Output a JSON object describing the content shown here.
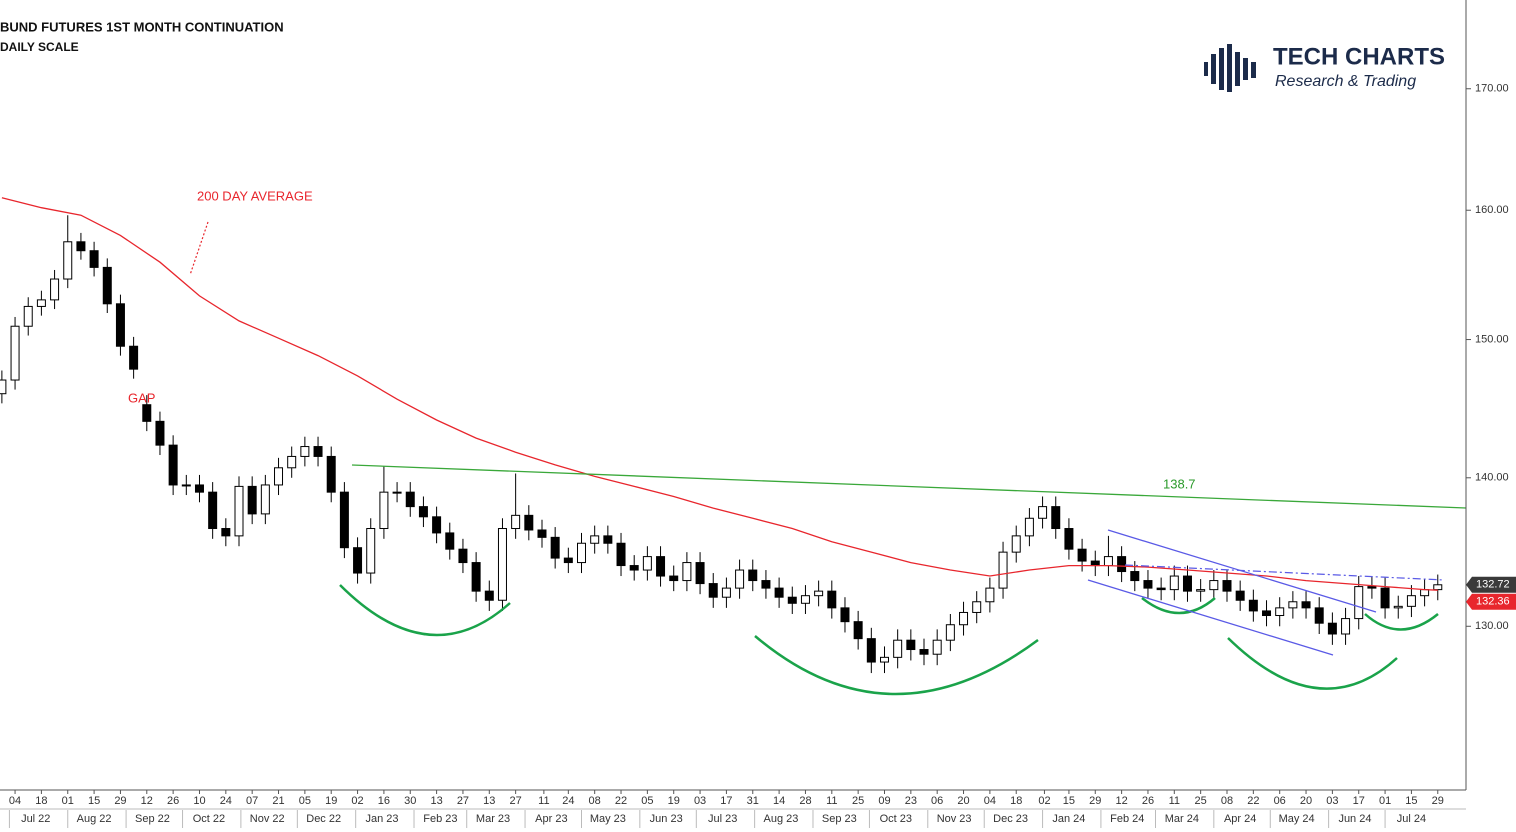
{
  "chart_data": {
    "type": "candlestick",
    "title": "BUND FUTURES 1ST MONTH CONTINUATION",
    "subtitle": "DAILY SCALE",
    "log_scale": true,
    "color_up": "#ffffff",
    "color_down": "#000000",
    "ylim": [
      119.8,
      177.7
    ],
    "yticks": [
      {
        "value": 130,
        "label": "130.00"
      },
      {
        "value": 140,
        "label": "140.00"
      },
      {
        "value": 150,
        "label": "150.00"
      },
      {
        "value": 160,
        "label": "160.00"
      },
      {
        "value": 170,
        "label": "170.00"
      }
    ],
    "xlim": [
      "2022-06-26",
      "2024-08-13"
    ],
    "xticks": [
      {
        "value": "2022-07-04",
        "label": "04"
      },
      {
        "value": "2022-07-18",
        "label": "18"
      },
      {
        "value": "2022-08-01",
        "label": "01"
      },
      {
        "value": "2022-08-15",
        "label": "15"
      },
      {
        "value": "2022-08-29",
        "label": "29"
      },
      {
        "value": "2022-09-12",
        "label": "12"
      },
      {
        "value": "2022-09-26",
        "label": "26"
      },
      {
        "value": "2022-10-10",
        "label": "10"
      },
      {
        "value": "2022-10-24",
        "label": "24"
      },
      {
        "value": "2022-11-07",
        "label": "07"
      },
      {
        "value": "2022-11-21",
        "label": "21"
      },
      {
        "value": "2022-12-05",
        "label": "05"
      },
      {
        "value": "2022-12-19",
        "label": "19"
      },
      {
        "value": "2023-01-02",
        "label": "02"
      },
      {
        "value": "2023-01-16",
        "label": "16"
      },
      {
        "value": "2023-01-30",
        "label": "30"
      },
      {
        "value": "2023-02-13",
        "label": "13"
      },
      {
        "value": "2023-02-27",
        "label": "27"
      },
      {
        "value": "2023-03-13",
        "label": "13"
      },
      {
        "value": "2023-03-27",
        "label": "27"
      },
      {
        "value": "2023-04-11",
        "label": "11"
      },
      {
        "value": "2023-04-24",
        "label": "24"
      },
      {
        "value": "2023-05-08",
        "label": "08"
      },
      {
        "value": "2023-05-22",
        "label": "22"
      },
      {
        "value": "2023-06-05",
        "label": "05"
      },
      {
        "value": "2023-06-19",
        "label": "19"
      },
      {
        "value": "2023-07-03",
        "label": "03"
      },
      {
        "value": "2023-07-17",
        "label": "17"
      },
      {
        "value": "2023-07-31",
        "label": "31"
      },
      {
        "value": "2023-08-14",
        "label": "14"
      },
      {
        "value": "2023-08-28",
        "label": "28"
      },
      {
        "value": "2023-09-11",
        "label": "11"
      },
      {
        "value": "2023-09-25",
        "label": "25"
      },
      {
        "value": "2023-10-09",
        "label": "09"
      },
      {
        "value": "2023-10-23",
        "label": "23"
      },
      {
        "value": "2023-11-06",
        "label": "06"
      },
      {
        "value": "2023-11-20",
        "label": "20"
      },
      {
        "value": "2023-12-04",
        "label": "04"
      },
      {
        "value": "2023-12-18",
        "label": "18"
      },
      {
        "value": "2024-01-02",
        "label": "02"
      },
      {
        "value": "2024-01-15",
        "label": "15"
      },
      {
        "value": "2024-01-29",
        "label": "29"
      },
      {
        "value": "2024-02-12",
        "label": "12"
      },
      {
        "value": "2024-02-26",
        "label": "26"
      },
      {
        "value": "2024-03-11",
        "label": "11"
      },
      {
        "value": "2024-03-25",
        "label": "25"
      },
      {
        "value": "2024-04-08",
        "label": "08"
      },
      {
        "value": "2024-04-22",
        "label": "22"
      },
      {
        "value": "2024-05-06",
        "label": "06"
      },
      {
        "value": "2024-05-20",
        "label": "20"
      },
      {
        "value": "2024-06-03",
        "label": "03"
      },
      {
        "value": "2024-06-17",
        "label": "17"
      },
      {
        "value": "2024-07-01",
        "label": "01"
      },
      {
        "value": "2024-07-15",
        "label": "15"
      },
      {
        "value": "2024-07-29",
        "label": "29"
      }
    ],
    "month_labels": [
      {
        "value": "2022-07",
        "label": "Jul 22"
      },
      {
        "value": "2022-08",
        "label": "Aug 22"
      },
      {
        "value": "2022-09",
        "label": "Sep 22"
      },
      {
        "value": "2022-10",
        "label": "Oct 22"
      },
      {
        "value": "2022-11",
        "label": "Nov 22"
      },
      {
        "value": "2022-12",
        "label": "Dec 22"
      },
      {
        "value": "2023-01",
        "label": "Jan 23"
      },
      {
        "value": "2023-02",
        "label": "Feb 23"
      },
      {
        "value": "2023-03",
        "label": "Mar 23"
      },
      {
        "value": "2023-04",
        "label": "Apr 23"
      },
      {
        "value": "2023-05",
        "label": "May 23"
      },
      {
        "value": "2023-06",
        "label": "Jun 23"
      },
      {
        "value": "2023-07",
        "label": "Jul 23"
      },
      {
        "value": "2023-08",
        "label": "Aug 23"
      },
      {
        "value": "2023-09",
        "label": "Sep 23"
      },
      {
        "value": "2023-10",
        "label": "Oct 23"
      },
      {
        "value": "2023-11",
        "label": "Nov 23"
      },
      {
        "value": "2023-12",
        "label": "Dec 23"
      },
      {
        "value": "2024-01",
        "label": "Jan 24"
      },
      {
        "value": "2024-02",
        "label": "Feb 24"
      },
      {
        "value": "2024-03",
        "label": "Mar 24"
      },
      {
        "value": "2024-04",
        "label": "Apr 24"
      },
      {
        "value": "2024-05",
        "label": "May 24"
      },
      {
        "value": "2024-06",
        "label": "Jun 24"
      },
      {
        "value": "2024-07",
        "label": "Jul 24"
      }
    ],
    "dates": [
      "2022-06-27",
      "2022-07-04",
      "2022-07-11",
      "2022-07-18",
      "2022-07-25",
      "2022-08-01",
      "2022-08-08",
      "2022-08-15",
      "2022-08-22",
      "2022-08-29",
      "2022-09-05",
      "2022-09-12",
      "2022-09-19",
      "2022-09-26",
      "2022-10-03",
      "2022-10-10",
      "2022-10-17",
      "2022-10-24",
      "2022-10-31",
      "2022-11-07",
      "2022-11-14",
      "2022-11-21",
      "2022-11-28",
      "2022-12-05",
      "2022-12-12",
      "2022-12-19",
      "2022-12-26",
      "2023-01-02",
      "2023-01-09",
      "2023-01-16",
      "2023-01-23",
      "2023-01-30",
      "2023-02-06",
      "2023-02-13",
      "2023-02-20",
      "2023-02-27",
      "2023-03-06",
      "2023-03-13",
      "2023-03-20",
      "2023-03-27",
      "2023-04-03",
      "2023-04-10",
      "2023-04-17",
      "2023-04-24",
      "2023-05-01",
      "2023-05-08",
      "2023-05-15",
      "2023-05-22",
      "2023-05-29",
      "2023-06-05",
      "2023-06-12",
      "2023-06-19",
      "2023-06-26",
      "2023-07-03",
      "2023-07-10",
      "2023-07-17",
      "2023-07-24",
      "2023-07-31",
      "2023-08-07",
      "2023-08-14",
      "2023-08-21",
      "2023-08-28",
      "2023-09-04",
      "2023-09-11",
      "2023-09-18",
      "2023-09-25",
      "2023-10-02",
      "2023-10-09",
      "2023-10-16",
      "2023-10-23",
      "2023-10-30",
      "2023-11-06",
      "2023-11-13",
      "2023-11-20",
      "2023-11-27",
      "2023-12-04",
      "2023-12-11",
      "2023-12-18",
      "2023-12-25",
      "2024-01-01",
      "2024-01-08",
      "2024-01-15",
      "2024-01-22",
      "2024-01-29",
      "2024-02-05",
      "2024-02-12",
      "2024-02-19",
      "2024-02-26",
      "2024-03-04",
      "2024-03-11",
      "2024-03-18",
      "2024-03-25",
      "2024-04-01",
      "2024-04-08",
      "2024-04-15",
      "2024-04-22",
      "2024-04-29",
      "2024-05-06",
      "2024-05-13",
      "2024-05-20",
      "2024-05-27",
      "2024-06-03",
      "2024-06-10",
      "2024-06-17",
      "2024-06-24",
      "2024-07-01",
      "2024-07-08",
      "2024-07-15",
      "2024-07-22",
      "2024-07-29"
    ],
    "open": [
      146.0,
      147.0,
      151.0,
      152.5,
      153.0,
      154.6,
      157.5,
      156.8,
      155.5,
      152.7,
      149.5,
      145.2,
      144.0,
      142.3,
      139.5,
      139.5,
      139.0,
      136.5,
      136.0,
      139.4,
      137.5,
      139.5,
      140.7,
      141.5,
      142.2,
      141.5,
      139.0,
      135.2,
      133.5,
      136.5,
      139.0,
      139.0,
      138.0,
      137.3,
      136.2,
      135.1,
      134.2,
      132.3,
      131.7,
      136.5,
      137.4,
      136.4,
      135.9,
      134.5,
      134.2,
      135.5,
      136.0,
      135.5,
      134.0,
      133.7,
      134.6,
      133.3,
      133.0,
      134.2,
      132.8,
      131.9,
      132.5,
      133.7,
      133.0,
      132.5,
      131.9,
      131.5,
      132.0,
      132.3,
      131.2,
      130.3,
      129.2,
      127.7,
      128.0,
      129.1,
      128.5,
      128.2,
      129.1,
      130.1,
      130.9,
      131.6,
      132.5,
      134.9,
      136.0,
      137.2,
      138.0,
      136.5,
      135.1,
      134.3,
      134.0,
      134.6,
      133.6,
      133.0,
      132.5,
      132.4,
      133.3,
      132.3,
      132.4,
      133.0,
      132.3,
      131.7,
      131.0,
      130.7,
      131.2,
      131.6,
      131.2,
      130.2,
      129.5,
      130.5,
      132.6,
      132.5,
      131.2,
      131.3,
      132.0,
      132.4
    ],
    "high": [
      147.7,
      151.7,
      153.2,
      153.7,
      155.3,
      159.6,
      158.2,
      157.5,
      156.2,
      153.4,
      150.2,
      145.9,
      144.7,
      143.0,
      140.2,
      140.2,
      139.7,
      137.2,
      140.1,
      140.1,
      140.2,
      141.4,
      142.2,
      142.9,
      142.9,
      142.2,
      139.7,
      135.9,
      137.2,
      140.8,
      139.7,
      139.7,
      138.7,
      138.0,
      136.9,
      135.8,
      134.9,
      133.0,
      137.2,
      140.3,
      138.1,
      137.1,
      136.6,
      135.2,
      136.2,
      136.7,
      136.7,
      136.2,
      134.7,
      135.3,
      135.3,
      134.0,
      134.9,
      134.9,
      133.5,
      133.2,
      134.4,
      134.4,
      133.7,
      133.2,
      132.6,
      132.7,
      133.0,
      133.0,
      131.9,
      131.0,
      129.9,
      128.7,
      129.8,
      129.8,
      129.2,
      129.8,
      130.8,
      131.6,
      132.3,
      133.2,
      135.6,
      136.7,
      137.9,
      138.7,
      138.7,
      137.2,
      135.8,
      135.0,
      136.0,
      135.3,
      134.3,
      133.7,
      133.2,
      134.0,
      134.0,
      133.1,
      133.7,
      133.7,
      133.0,
      132.4,
      131.7,
      131.9,
      132.3,
      132.3,
      131.9,
      130.9,
      131.2,
      133.3,
      133.3,
      133.2,
      132.0,
      132.7,
      133.1,
      133.4
    ],
    "low": [
      145.3,
      146.3,
      150.3,
      151.8,
      152.3,
      153.9,
      156.1,
      154.8,
      152.0,
      148.8,
      147.1,
      143.3,
      141.6,
      138.8,
      138.8,
      138.3,
      135.8,
      135.3,
      135.3,
      136.8,
      136.8,
      138.8,
      140.0,
      140.8,
      140.8,
      138.3,
      134.5,
      132.8,
      132.8,
      135.8,
      138.3,
      137.3,
      136.6,
      135.5,
      134.4,
      133.5,
      131.6,
      131.0,
      131.0,
      135.8,
      135.7,
      135.2,
      133.8,
      133.5,
      133.5,
      134.8,
      134.8,
      133.3,
      133.0,
      133.0,
      132.6,
      132.3,
      132.3,
      132.1,
      131.2,
      131.2,
      131.8,
      132.3,
      131.8,
      131.2,
      130.8,
      130.8,
      131.3,
      130.5,
      129.6,
      128.5,
      127.0,
      127.0,
      127.3,
      127.8,
      127.5,
      127.5,
      128.4,
      129.4,
      130.2,
      130.9,
      131.8,
      134.2,
      135.3,
      136.5,
      135.8,
      134.4,
      133.6,
      133.3,
      133.3,
      132.9,
      132.3,
      131.8,
      131.7,
      131.7,
      131.6,
      131.6,
      131.7,
      131.6,
      131.0,
      130.3,
      130.0,
      130.0,
      130.5,
      130.5,
      129.5,
      128.8,
      128.8,
      129.8,
      131.8,
      130.5,
      130.5,
      130.6,
      131.3,
      131.7
    ],
    "close": [
      147.0,
      151.0,
      152.5,
      153.0,
      154.6,
      157.5,
      156.8,
      155.5,
      152.7,
      149.5,
      147.8,
      144.0,
      142.3,
      139.5,
      139.5,
      139.0,
      136.5,
      136.0,
      139.4,
      137.5,
      139.5,
      140.7,
      141.5,
      142.2,
      141.5,
      139.0,
      135.2,
      133.5,
      136.5,
      139.0,
      139.0,
      138.0,
      137.3,
      136.2,
      135.1,
      134.2,
      132.3,
      131.7,
      136.5,
      137.4,
      136.4,
      135.9,
      134.5,
      134.2,
      135.5,
      136.0,
      135.5,
      134.0,
      133.7,
      134.6,
      133.3,
      133.0,
      134.2,
      132.8,
      131.9,
      132.5,
      133.7,
      133.0,
      132.5,
      131.9,
      131.5,
      132.0,
      132.3,
      131.2,
      130.3,
      129.2,
      127.7,
      128.0,
      129.1,
      128.5,
      128.2,
      129.1,
      130.1,
      130.9,
      131.6,
      132.5,
      134.9,
      136.0,
      137.2,
      138.0,
      136.5,
      135.1,
      134.3,
      134.0,
      134.6,
      133.6,
      133.0,
      132.5,
      132.4,
      133.3,
      132.3,
      132.4,
      133.0,
      132.3,
      131.7,
      131.0,
      130.7,
      131.2,
      131.6,
      131.2,
      130.2,
      129.5,
      130.5,
      132.6,
      132.5,
      131.2,
      131.3,
      132.0,
      132.4,
      132.72
    ],
    "moving_average": {
      "name": "200 DAY AVERAGE",
      "color": "#e8262d",
      "x": [
        "2022-06-27",
        "2022-07-18",
        "2022-08-08",
        "2022-08-29",
        "2022-09-19",
        "2022-10-10",
        "2022-10-31",
        "2022-11-21",
        "2022-12-12",
        "2023-01-02",
        "2023-01-23",
        "2023-02-13",
        "2023-03-06",
        "2023-03-27",
        "2023-04-17",
        "2023-05-08",
        "2023-05-29",
        "2023-06-19",
        "2023-07-10",
        "2023-07-31",
        "2023-08-21",
        "2023-09-11",
        "2023-10-02",
        "2023-10-23",
        "2023-11-13",
        "2023-12-04",
        "2023-12-25",
        "2024-01-15",
        "2024-02-05",
        "2024-02-26",
        "2024-03-18",
        "2024-04-08",
        "2024-04-29",
        "2024-05-20",
        "2024-06-10",
        "2024-07-01",
        "2024-07-22",
        "2024-07-29"
      ],
      "values": [
        161.0,
        160.2,
        159.6,
        158.0,
        155.9,
        153.3,
        151.4,
        150.1,
        148.8,
        147.3,
        145.6,
        144.1,
        142.8,
        141.8,
        140.9,
        140.1,
        139.4,
        138.7,
        137.9,
        137.2,
        136.5,
        135.6,
        134.9,
        134.2,
        133.7,
        133.3,
        133.7,
        134.0,
        134.0,
        133.9,
        133.7,
        133.5,
        133.3,
        133.0,
        132.8,
        132.6,
        132.4,
        132.36
      ]
    },
    "last_price": 132.72,
    "ma_last": 132.36,
    "annotations": {
      "gap": "GAP",
      "neckline": "138.7"
    }
  },
  "logo": {
    "title": "TECH CHARTS",
    "subtitle": "Research & Trading"
  }
}
